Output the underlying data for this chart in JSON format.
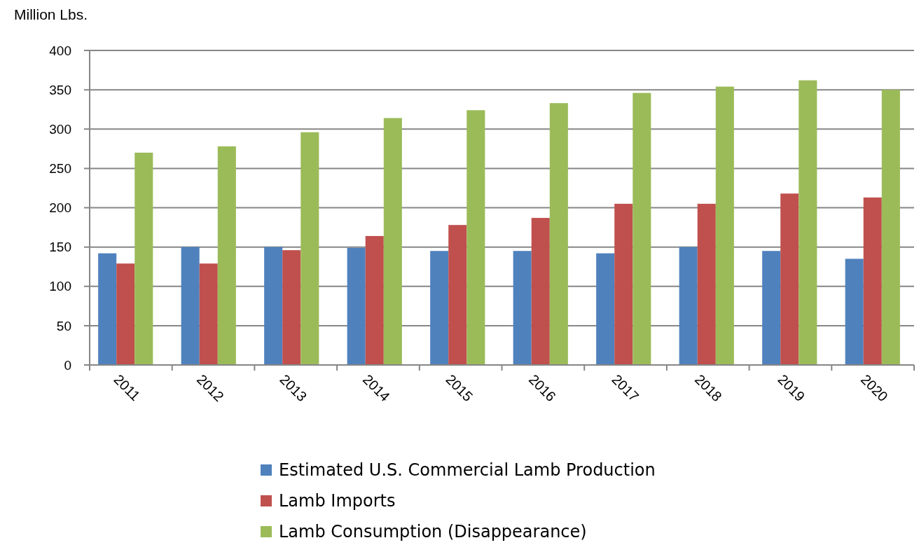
{
  "chart_data": {
    "type": "bar",
    "ylabel": "Million Lbs.",
    "categories": [
      "2011",
      "2012",
      "2013",
      "2014",
      "2015",
      "2016",
      "2017",
      "2018",
      "2019",
      "2020"
    ],
    "series": [
      {
        "name": "Estimated U.S. Commercial Lamb Production",
        "color": "#4f81bd",
        "values": [
          142,
          150,
          150,
          149,
          145,
          145,
          142,
          150,
          145,
          135
        ]
      },
      {
        "name": "Lamb Imports",
        "color": "#c0504d",
        "values": [
          129,
          129,
          146,
          164,
          178,
          187,
          205,
          205,
          218,
          213
        ]
      },
      {
        "name": "Lamb Consumption (Disappearance)",
        "color": "#9bbb59",
        "values": [
          270,
          278,
          296,
          314,
          324,
          333,
          346,
          354,
          362,
          350
        ]
      }
    ],
    "ylim": [
      0,
      400
    ],
    "yticks": [
      0,
      50,
      100,
      150,
      200,
      250,
      300,
      350,
      400
    ],
    "grid": "y",
    "legend": "bottom"
  }
}
